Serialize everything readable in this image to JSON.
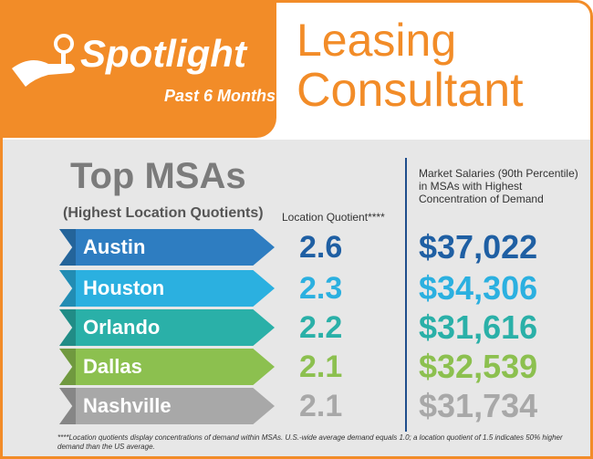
{
  "header": {
    "badge": "Spotlight",
    "period": "Past 6 Months",
    "title_lines": [
      "Leasing",
      "Consultant"
    ]
  },
  "section": {
    "title": "Top MSAs",
    "subtitle": "(Highest Location Quotients)",
    "lq_header": "Location Quotient****",
    "salary_header": "Market Salaries (90th Percentile) in MSAs with Highest Concentration of Demand"
  },
  "rows": [
    {
      "city": "Austin",
      "lq": 2.6,
      "salary": "$37,022"
    },
    {
      "city": "Houston",
      "lq": 2.3,
      "salary": "$34,306"
    },
    {
      "city": "Orlando",
      "lq": 2.2,
      "salary": "$31,616"
    },
    {
      "city": "Dallas",
      "lq": 2.1,
      "salary": "$32,539"
    },
    {
      "city": "Nashville",
      "lq": 2.1,
      "salary": "$31,734"
    }
  ],
  "footnote": "****Location quotients display concentrations of demand within MSAs. U.S.-wide average demand equals 1.0; a location quotient of 1.5 indicates 50% higher demand than the US average."
}
